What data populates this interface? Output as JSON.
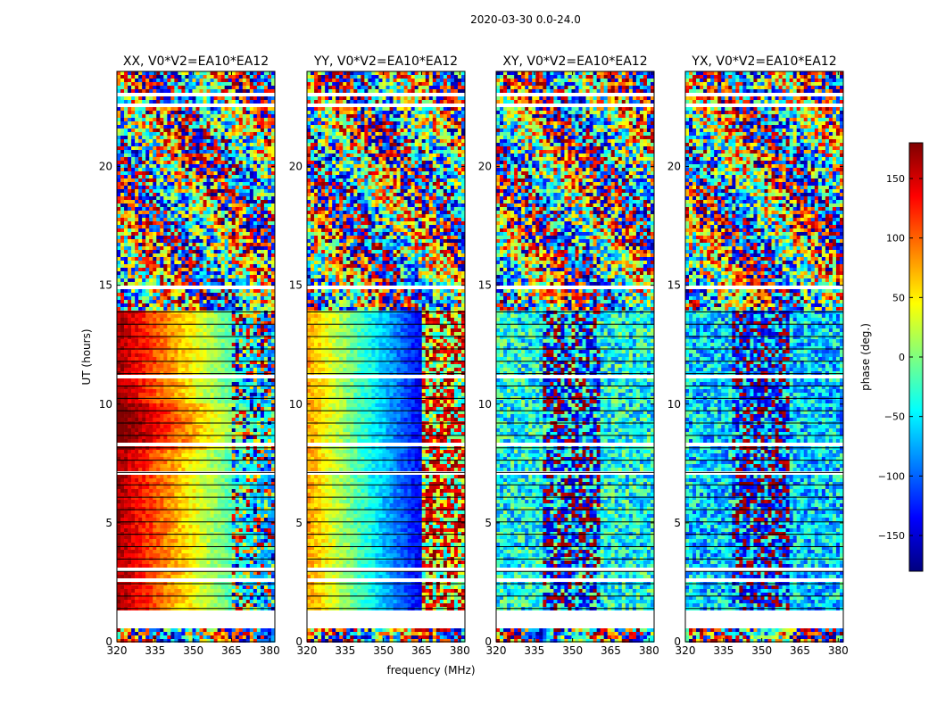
{
  "figure": {
    "suptitle": "2020-03-30 0.0-24.0"
  },
  "chart_data": {
    "type": "heatmap",
    "title": "2020-03-30 0.0-24.0",
    "xlabel": "frequency (MHz)",
    "ylabel": "UT (hours)",
    "xlim": [
      320,
      382
    ],
    "ylim": [
      0,
      24
    ],
    "x_ticks": [
      320,
      335,
      350,
      365,
      380
    ],
    "x_tick_labels": [
      "320",
      "335",
      "350",
      "365",
      "380"
    ],
    "y_ticks": [
      0,
      5,
      10,
      15,
      20
    ],
    "y_tick_labels": [
      "0",
      "5",
      "10",
      "15",
      "20"
    ],
    "colormap": "jet",
    "colorbar": {
      "label": "phase (deg.)",
      "range": [
        -180,
        180
      ],
      "ticks": [
        150,
        100,
        50,
        0,
        -50,
        -100,
        -150
      ],
      "tick_labels": [
        "150",
        "100",
        "50",
        "0",
        "−50",
        "−100",
        "−150"
      ],
      "colors": [
        "#00007f",
        "#0000ff",
        "#007fff",
        "#00ffff",
        "#7fff7f",
        "#ffff00",
        "#ff7f00",
        "#ff0000",
        "#7f0000"
      ]
    },
    "blank_hour_bands": [
      [
        0.6,
        1.2
      ],
      [
        1.2,
        1.35
      ],
      [
        2.55,
        2.6
      ],
      [
        3.0,
        3.05
      ],
      [
        4.7,
        4.75
      ],
      [
        5.9,
        5.95
      ],
      [
        7.05,
        7.1
      ],
      [
        8.3,
        8.35
      ],
      [
        9.3,
        9.35
      ],
      [
        11.1,
        11.2
      ],
      [
        12.3,
        12.35
      ],
      [
        13.0,
        13.1
      ],
      [
        14.9,
        15.0
      ],
      [
        16.9,
        17.0
      ],
      [
        17.2,
        17.25
      ],
      [
        18.1,
        18.15
      ],
      [
        19.2,
        19.25
      ],
      [
        21.3,
        21.35
      ],
      [
        21.9,
        21.95
      ],
      [
        22.2,
        22.25
      ],
      [
        22.5,
        22.6
      ],
      [
        22.75,
        22.85
      ],
      [
        23.0,
        23.05
      ]
    ],
    "panels": [
      {
        "name": "XX",
        "title": "XX, V0*V2=EA10*EA12"
      },
      {
        "name": "YY",
        "title": "YY, V0*V2=EA10*EA12"
      },
      {
        "name": "XY",
        "title": "XY, V0*V2=EA10*EA12"
      },
      {
        "name": "YX",
        "title": "YX, V0*V2=EA10*EA12"
      }
    ]
  }
}
